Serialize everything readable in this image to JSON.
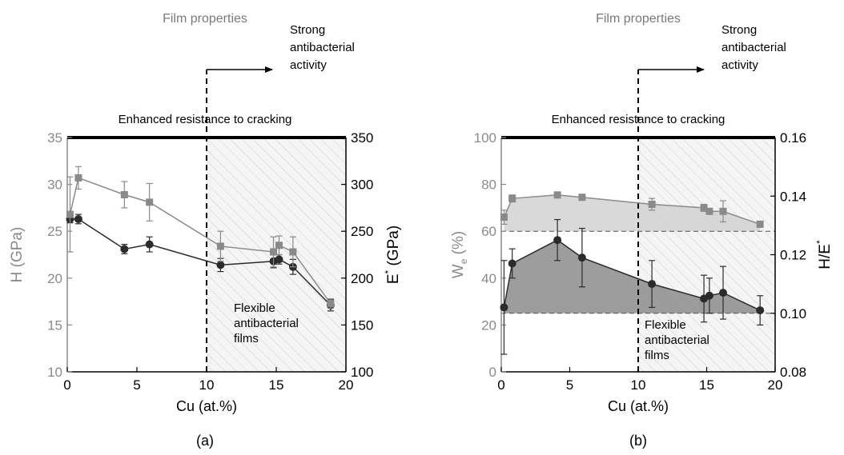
{
  "colors": {
    "h_series": "#2b2b2b",
    "e_series": "#8a8a8a",
    "we_fill": "#d0d0d0",
    "he_fill": "#8c8c8c",
    "hatch_bg": "#f5f5f5",
    "hatch_line": "#cfcfcf",
    "title_gray": "#7a7a7a"
  },
  "chart_data": [
    {
      "panel_label": "(a)",
      "type": "line",
      "title": "Film properties",
      "top_label": "Enhanced resistance to cracking",
      "arrow_label": [
        "Strong",
        "antibacterial",
        "activity"
      ],
      "region_label": [
        "Flexible",
        "antibacterial",
        "films"
      ],
      "threshold_x": 10,
      "xlabel": "Cu (at.%)",
      "xlim": [
        0,
        20
      ],
      "xticks": [
        "0",
        "5",
        "10",
        "15",
        "20"
      ],
      "ylabel_left": "H (GPa)",
      "ylim_left": [
        10,
        35
      ],
      "yticks_left": [
        "10",
        "15",
        "20",
        "25",
        "30",
        "35"
      ],
      "ylabel_right_base": "E",
      "ylabel_right_sup": "*",
      "ylabel_right_rest": " (GPa)",
      "ylim_right": [
        100,
        350
      ],
      "yticks_right": [
        "100",
        "150",
        "200",
        "250",
        "300",
        "350"
      ],
      "series": [
        {
          "axis": "left",
          "marker": "circle",
          "x": [
            0.2,
            0.8,
            4.1,
            5.9,
            11.0,
            14.8,
            15.2,
            16.2,
            18.9
          ],
          "y": [
            26.3,
            26.3,
            23.1,
            23.6,
            21.4,
            21.8,
            22.0,
            21.2,
            17.1
          ],
          "err": [
            0.4,
            0.5,
            0.5,
            0.8,
            0.7,
            0.7,
            0.5,
            0.8,
            0.6
          ]
        },
        {
          "axis": "right",
          "marker": "square",
          "x": [
            0.2,
            0.8,
            4.1,
            5.9,
            11.0,
            14.8,
            15.2,
            16.2,
            18.9
          ],
          "y": [
            268,
            307,
            289,
            281,
            234,
            228,
            235,
            228,
            173
          ],
          "err": [
            40,
            12,
            14,
            20,
            16,
            16,
            10,
            16,
            5
          ]
        }
      ]
    },
    {
      "panel_label": "(b)",
      "type": "area",
      "title": "Film properties",
      "top_label": "Enhanced resistance to cracking",
      "arrow_label": [
        "Strong",
        "antibacterial",
        "activity"
      ],
      "region_label": [
        "Flexible",
        "antibacterial",
        "films"
      ],
      "threshold_x": 10,
      "xlabel": "Cu (at.%)",
      "xlim": [
        0,
        20
      ],
      "xticks": [
        "0",
        "5",
        "10",
        "15",
        "20"
      ],
      "ylabel_left_base": "W",
      "ylabel_left_sub": "e",
      "ylabel_left_rest": " (%)",
      "ylim_left": [
        0,
        100
      ],
      "yticks_left": [
        "0",
        "20",
        "40",
        "60",
        "80",
        "100"
      ],
      "ylabel_right_base": "H/E",
      "ylabel_right_sup": "*",
      "ylim_right": [
        0.08,
        0.16
      ],
      "yticks_right": [
        "0.08",
        "0.10",
        "0.12",
        "0.14",
        "0.16"
      ],
      "series": [
        {
          "axis": "left",
          "marker": "square",
          "baseline": 60,
          "x": [
            0.2,
            0.8,
            4.1,
            5.9,
            11.0,
            14.8,
            15.2,
            16.2,
            18.9
          ],
          "y": [
            66,
            74,
            75.5,
            74.5,
            71.5,
            70,
            68.5,
            68.5,
            63
          ],
          "err": [
            3,
            1.5,
            1,
            1,
            2.5,
            1.5,
            1,
            4.5,
            1
          ]
        },
        {
          "axis": "right",
          "marker": "circle",
          "baseline": 0.1,
          "x": [
            0.2,
            0.8,
            4.1,
            5.9,
            11.0,
            14.8,
            15.2,
            16.2,
            18.9
          ],
          "y": [
            0.102,
            0.117,
            0.125,
            0.119,
            0.11,
            0.105,
            0.106,
            0.107,
            0.101
          ],
          "err": [
            0.016,
            0.005,
            0.007,
            0.01,
            0.008,
            0.008,
            0.006,
            0.009,
            0.005
          ]
        }
      ]
    }
  ]
}
